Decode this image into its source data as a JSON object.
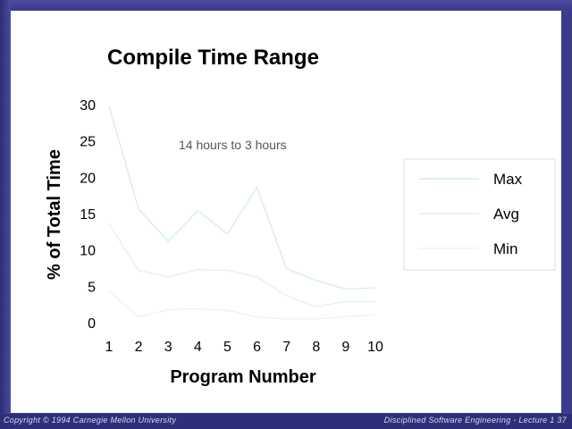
{
  "footer": {
    "copyright": "Copyright © 1994 Carnegie Mellon University",
    "course": "Disciplined Software Engineering - Lecture 1   37"
  },
  "chart_data": {
    "type": "line",
    "title": "Compile Time Range",
    "xlabel": "Program Number",
    "ylabel": "% of Total Time",
    "annotation": "14 hours to 3 hours",
    "x": [
      1,
      2,
      3,
      4,
      5,
      6,
      7,
      8,
      9,
      10
    ],
    "ylim": [
      0,
      30
    ],
    "yticks": [
      0,
      5,
      10,
      15,
      20,
      25,
      30
    ],
    "legend_position": "right",
    "grid": false,
    "series": [
      {
        "name": "Max",
        "color": "#d6f2d6",
        "values": [
          29.8,
          15.6,
          11.2,
          15.4,
          12.2,
          18.6,
          7.4,
          5.8,
          4.6,
          4.8
        ]
      },
      {
        "name": "Avg",
        "color": "#e3f5e3",
        "values": [
          13.6,
          7.2,
          6.3,
          7.3,
          7.2,
          6.3,
          3.7,
          2.2,
          2.9,
          2.9
        ]
      },
      {
        "name": "Min",
        "color": "#eaf7ea",
        "values": [
          4.3,
          0.8,
          1.8,
          1.9,
          1.7,
          0.8,
          0.5,
          0.5,
          0.8,
          1.1
        ]
      }
    ]
  }
}
